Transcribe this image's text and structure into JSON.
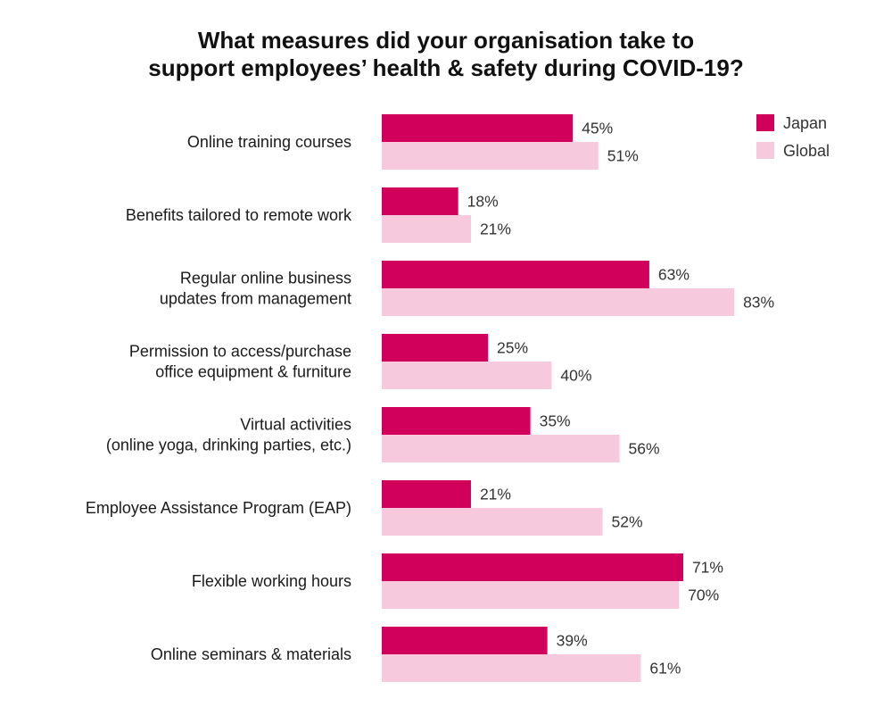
{
  "chart_data": {
    "type": "bar",
    "orientation": "horizontal",
    "title": [
      "What measures did your organisation take to",
      "support employees’ health & safety during COVID-19?"
    ],
    "categories": [
      [
        "Online training courses"
      ],
      [
        "Benefits tailored to remote work"
      ],
      [
        "Regular online business",
        "updates from management"
      ],
      [
        "Permission to access/purchase",
        "office equipment & furniture"
      ],
      [
        "Virtual activities",
        "(online yoga, drinking parties, etc.)"
      ],
      [
        "Employee Assistance Program (EAP)"
      ],
      [
        "Flexible working hours"
      ],
      [
        "Online seminars & materials"
      ]
    ],
    "series": [
      {
        "name": "Japan",
        "color": "#d1005b",
        "values": [
          45,
          18,
          63,
          25,
          35,
          21,
          71,
          39
        ],
        "labels": [
          "45%",
          "18%",
          "63%",
          "25%",
          "35%",
          "21%",
          "71%",
          "39%"
        ]
      },
      {
        "name": "Global",
        "color": "#f6c9dc",
        "values": [
          51,
          21,
          83,
          40,
          56,
          52,
          70,
          61
        ],
        "labels": [
          "51%",
          "21%",
          "83%",
          "40%",
          "56%",
          "52%",
          "70%",
          "61%"
        ]
      }
    ],
    "xlim": [
      0,
      100
    ],
    "unit": "%",
    "grid": false,
    "legend_position": "top-right"
  }
}
